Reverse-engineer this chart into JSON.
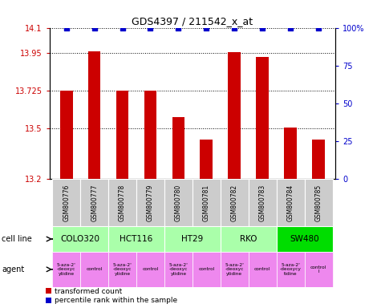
{
  "title": "GDS4397 / 211542_x_at",
  "samples": [
    "GSM800776",
    "GSM800777",
    "GSM800778",
    "GSM800779",
    "GSM800780",
    "GSM800781",
    "GSM800782",
    "GSM800783",
    "GSM800784",
    "GSM800785"
  ],
  "bar_values": [
    13.725,
    13.96,
    13.725,
    13.725,
    13.565,
    13.435,
    13.955,
    13.925,
    13.505,
    13.435
  ],
  "percentile_values": [
    100,
    100,
    100,
    100,
    100,
    100,
    100,
    100,
    100,
    100
  ],
  "ylim_left": [
    13.2,
    14.1
  ],
  "ylim_right": [
    0,
    100
  ],
  "yticks_left": [
    13.2,
    13.5,
    13.725,
    13.95,
    14.1
  ],
  "yticks_right": [
    0,
    25,
    50,
    75,
    100
  ],
  "ytick_labels_left": [
    "13.2",
    "13.5",
    "13.725",
    "13.95",
    "14.1"
  ],
  "ytick_labels_right": [
    "0",
    "25",
    "50",
    "75",
    "100%"
  ],
  "bar_color": "#cc0000",
  "percentile_color": "#0000cc",
  "cell_lines": [
    {
      "name": "COLO320",
      "start": 0,
      "end": 2,
      "color": "#aaffaa"
    },
    {
      "name": "HCT116",
      "start": 2,
      "end": 4,
      "color": "#aaffaa"
    },
    {
      "name": "HT29",
      "start": 4,
      "end": 6,
      "color": "#aaffaa"
    },
    {
      "name": "RKO",
      "start": 6,
      "end": 8,
      "color": "#aaffaa"
    },
    {
      "name": "SW480",
      "start": 8,
      "end": 10,
      "color": "#00dd00"
    }
  ],
  "agents": [
    {
      "name": "5-aza-2'\n-deoxyc\nytidine",
      "color": "#ee88ee"
    },
    {
      "name": "control",
      "color": "#ee88ee"
    },
    {
      "name": "5-aza-2'\n-deoxyc\nytidine",
      "color": "#ee88ee"
    },
    {
      "name": "control",
      "color": "#ee88ee"
    },
    {
      "name": "5-aza-2'\n-deoxyc\nytidine",
      "color": "#ee88ee"
    },
    {
      "name": "control",
      "color": "#ee88ee"
    },
    {
      "name": "5-aza-2'\n-deoxyc\nytidine",
      "color": "#ee88ee"
    },
    {
      "name": "control",
      "color": "#ee88ee"
    },
    {
      "name": "5-aza-2'\n-deoxycy\ntidine",
      "color": "#ee88ee"
    },
    {
      "name": "control\nl",
      "color": "#ee88ee"
    }
  ],
  "legend_items": [
    {
      "label": "transformed count",
      "color": "#cc0000"
    },
    {
      "label": "percentile rank within the sample",
      "color": "#0000cc"
    }
  ],
  "bg_color": "#ffffff",
  "tick_color_left": "#cc0000",
  "tick_color_right": "#0000cc",
  "sample_bg": "#cccccc",
  "grid_color": "#000000"
}
